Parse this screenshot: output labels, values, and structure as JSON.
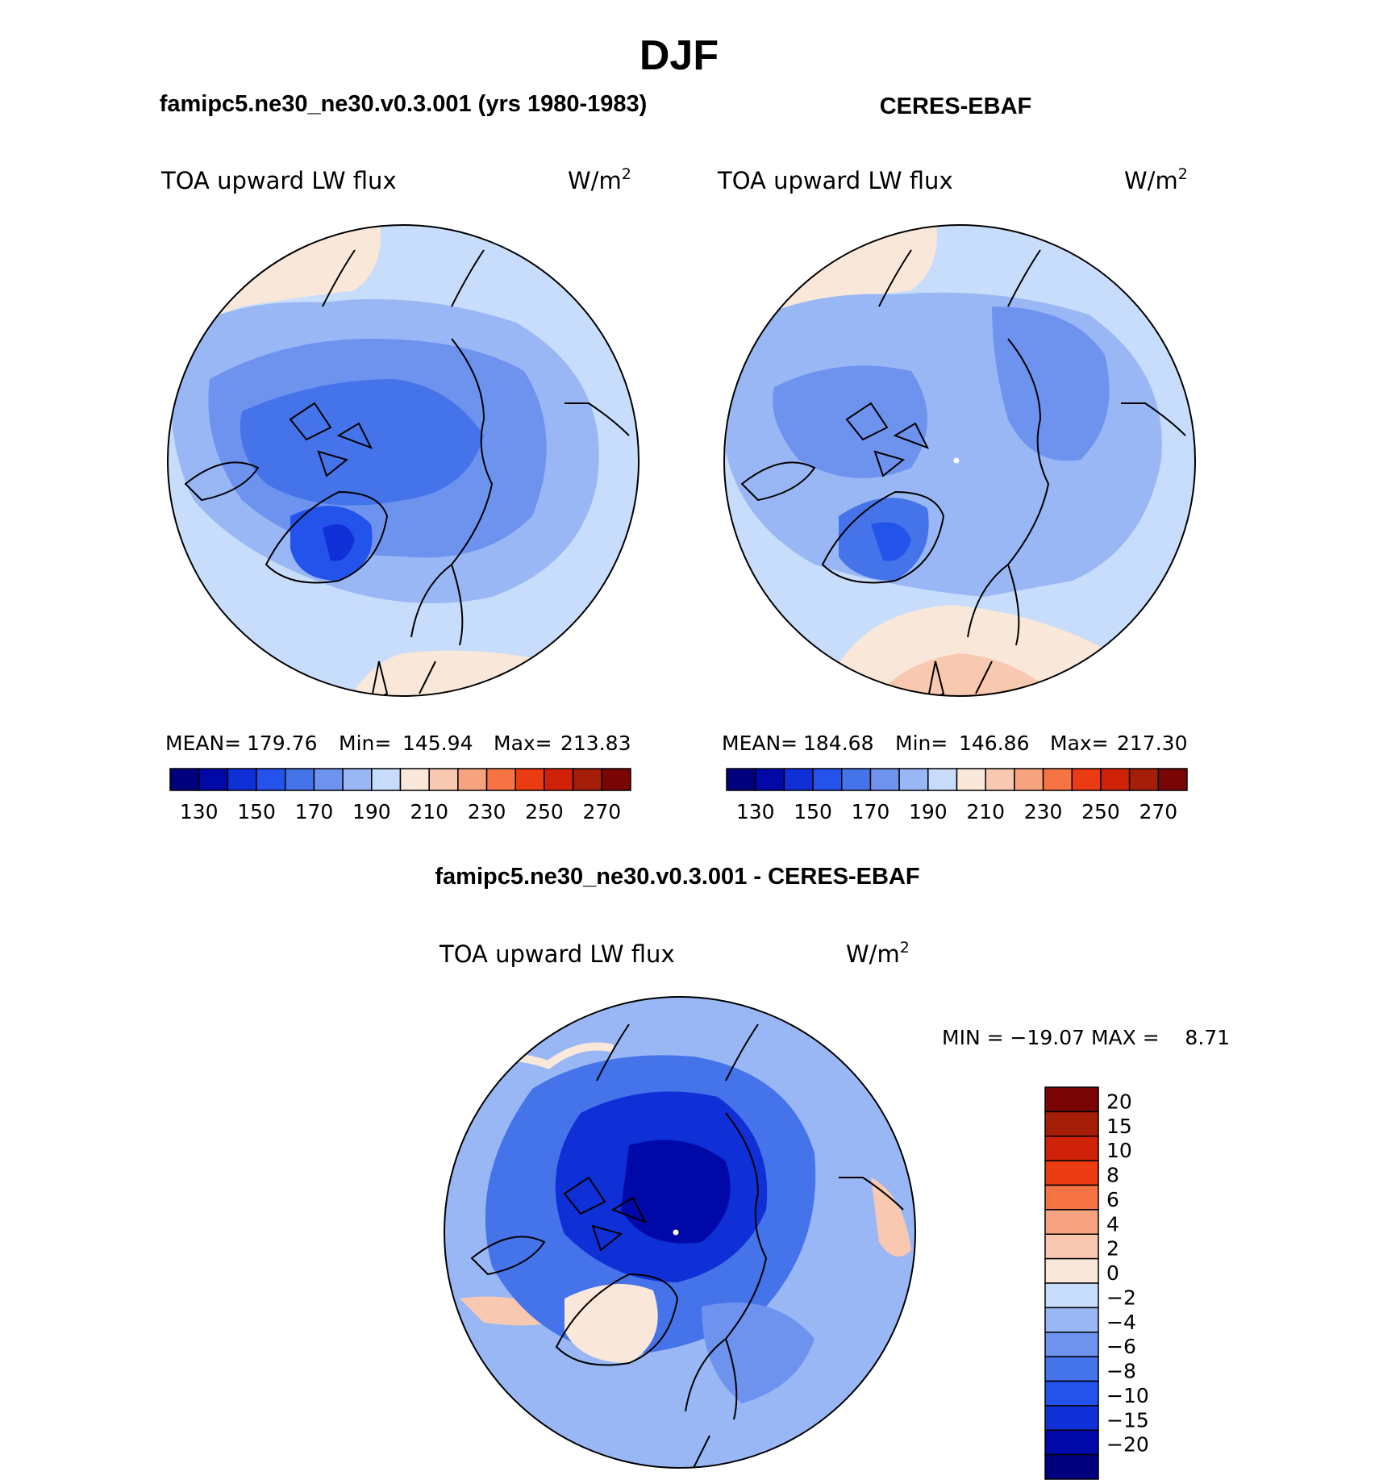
{
  "chart_data": {
    "type": "heatmap",
    "title": "DJF",
    "variable": "TOA upward LW flux",
    "units_base": "W/m",
    "units_exp": "2",
    "palette_abs": [
      "#00007f",
      "#0009a8",
      "#0f2fd7",
      "#2453ec",
      "#4473ea",
      "#6e93ef",
      "#99b7f5",
      "#c8dcfb",
      "#f9e8da",
      "#f8c8b0",
      "#f7a37f",
      "#f67444",
      "#ea3b12",
      "#cf2208",
      "#a51e08",
      "#7a0505"
    ],
    "palette_diff": [
      "#7a0505",
      "#a51e08",
      "#cf2208",
      "#ea3b12",
      "#f67444",
      "#f7a37f",
      "#f8c8b0",
      "#f9e8da",
      "#c8dcfb",
      "#99b7f5",
      "#6e93ef",
      "#4473ea",
      "#2453ec",
      "#0f2fd7",
      "#0009a8",
      "#00007f"
    ],
    "panels": [
      {
        "title": "famipc5.ne30_ne30.v0.3.001 (yrs 1980-1983)",
        "stats": {
          "mean_label": "MEAN=",
          "mean": "179.76",
          "min_label": "Min=",
          "min": "145.94",
          "max_label": "Max=",
          "max": "213.83"
        },
        "colorbar_ticks": [
          "130",
          "150",
          "170",
          "190",
          "210",
          "230",
          "250",
          "270"
        ]
      },
      {
        "title": "CERES-EBAF",
        "stats": {
          "mean_label": "MEAN=",
          "mean": "184.68",
          "min_label": "Min=",
          "min": "146.86",
          "max_label": "Max=",
          "max": "217.30"
        },
        "colorbar_ticks": [
          "130",
          "150",
          "170",
          "190",
          "210",
          "230",
          "250",
          "270"
        ]
      },
      {
        "title": "famipc5.ne30_ne30.v0.3.001 - CERES-EBAF",
        "stats_text": "MIN = −19.07 MAX =    8.71",
        "colorbar_ticks": [
          "20",
          "15",
          "10",
          "8",
          "6",
          "4",
          "2",
          "0",
          "−2",
          "−4",
          "−6",
          "−8",
          "−10",
          "−15",
          "−20"
        ]
      }
    ]
  }
}
